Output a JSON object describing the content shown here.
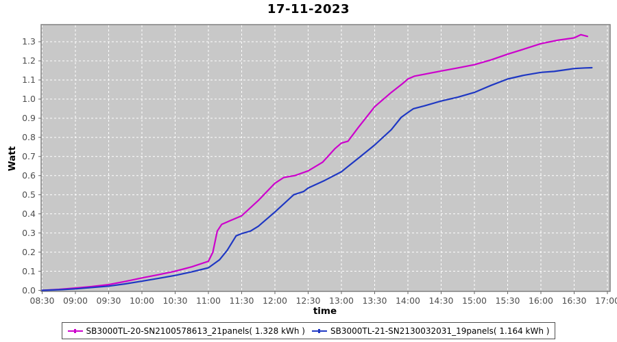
{
  "title": "17-11-2023",
  "axes": {
    "y_label": "Watt",
    "x_label": "time",
    "y_ticks": [
      "0.0",
      "0.1",
      "0.2",
      "0.3",
      "0.4",
      "0.5",
      "0.6",
      "0.7",
      "0.8",
      "0.9",
      "1.0",
      "1.1",
      "1.2",
      "1.3"
    ],
    "x_ticks": [
      "08:30",
      "09:00",
      "09:30",
      "10:00",
      "10:30",
      "11:00",
      "11:30",
      "12:00",
      "12:30",
      "13:00",
      "13:30",
      "14:00",
      "14:30",
      "15:00",
      "15:30",
      "16:00",
      "16:30",
      "17:00"
    ]
  },
  "legend": {
    "entries": [
      {
        "label": "SB3000TL-20-SN2100578613_21panels( 1.328 kWh )",
        "color": "#CC00CC"
      },
      {
        "label": "SB3000TL-21-SN2130032031_19panels( 1.164 kWh )",
        "color": "#1E37C3"
      }
    ]
  },
  "colors": {
    "plot_background": "#C8C8C8",
    "grid": "#FFFFFF",
    "plot_border": "#808080",
    "tick_text": "#4D4D4D",
    "tick_mark": "#666666",
    "series_magenta": "#CC00CC",
    "series_blue": "#1E37C3"
  },
  "chart_data": {
    "type": "line",
    "title": "17-11-2023",
    "xlabel": "time",
    "ylabel": "Watt",
    "x_range": [
      "08:30",
      "17:00"
    ],
    "ylim": [
      0.0,
      1.39
    ],
    "grid": "white dashed on gray, both axes",
    "legend_position": "bottom-center",
    "series": [
      {
        "name": "SB3000TL-20-SN2100578613_21panels( 1.328 kWh )",
        "color": "#CC00CC",
        "total_kwh": 1.328,
        "points": [
          [
            "08:30",
            0.0
          ],
          [
            "08:45",
            0.005
          ],
          [
            "09:00",
            0.012
          ],
          [
            "09:15",
            0.02
          ],
          [
            "09:30",
            0.03
          ],
          [
            "09:45",
            0.047
          ],
          [
            "10:00",
            0.065
          ],
          [
            "10:15",
            0.082
          ],
          [
            "10:30",
            0.1
          ],
          [
            "10:45",
            0.123
          ],
          [
            "11:00",
            0.152
          ],
          [
            "11:04",
            0.2
          ],
          [
            "11:08",
            0.31
          ],
          [
            "11:12",
            0.345
          ],
          [
            "11:20",
            0.365
          ],
          [
            "11:30",
            0.39
          ],
          [
            "11:45",
            0.47
          ],
          [
            "12:00",
            0.56
          ],
          [
            "12:08",
            0.59
          ],
          [
            "12:18",
            0.6
          ],
          [
            "12:30",
            0.625
          ],
          [
            "12:43",
            0.67
          ],
          [
            "12:54",
            0.74
          ],
          [
            "13:00",
            0.77
          ],
          [
            "13:06",
            0.78
          ],
          [
            "13:15",
            0.85
          ],
          [
            "13:30",
            0.96
          ],
          [
            "13:45",
            1.035
          ],
          [
            "13:55",
            1.08
          ],
          [
            "14:00",
            1.105
          ],
          [
            "14:06",
            1.12
          ],
          [
            "14:30",
            1.147
          ],
          [
            "14:45",
            1.163
          ],
          [
            "15:00",
            1.18
          ],
          [
            "15:15",
            1.205
          ],
          [
            "15:30",
            1.235
          ],
          [
            "15:45",
            1.262
          ],
          [
            "16:00",
            1.29
          ],
          [
            "16:15",
            1.308
          ],
          [
            "16:30",
            1.32
          ],
          [
            "16:36",
            1.337
          ],
          [
            "16:42",
            1.328
          ]
        ]
      },
      {
        "name": "SB3000TL-21-SN2130032031_19panels( 1.164 kWh )",
        "color": "#1E37C3",
        "total_kwh": 1.164,
        "points": [
          [
            "08:30",
            0.0
          ],
          [
            "08:48",
            0.004
          ],
          [
            "09:00",
            0.008
          ],
          [
            "09:15",
            0.015
          ],
          [
            "09:30",
            0.022
          ],
          [
            "09:45",
            0.034
          ],
          [
            "10:00",
            0.048
          ],
          [
            "10:15",
            0.063
          ],
          [
            "10:30",
            0.078
          ],
          [
            "10:45",
            0.097
          ],
          [
            "11:00",
            0.118
          ],
          [
            "11:10",
            0.16
          ],
          [
            "11:17",
            0.21
          ],
          [
            "11:25",
            0.285
          ],
          [
            "11:30",
            0.297
          ],
          [
            "11:38",
            0.31
          ],
          [
            "11:45",
            0.335
          ],
          [
            "12:00",
            0.41
          ],
          [
            "12:17",
            0.5
          ],
          [
            "12:26",
            0.517
          ],
          [
            "12:30",
            0.535
          ],
          [
            "12:45",
            0.575
          ],
          [
            "13:00",
            0.62
          ],
          [
            "13:15",
            0.69
          ],
          [
            "13:30",
            0.76
          ],
          [
            "13:45",
            0.84
          ],
          [
            "13:54",
            0.905
          ],
          [
            "14:00",
            0.93
          ],
          [
            "14:05",
            0.95
          ],
          [
            "14:15",
            0.965
          ],
          [
            "14:30",
            0.99
          ],
          [
            "14:45",
            1.01
          ],
          [
            "15:00",
            1.035
          ],
          [
            "15:15",
            1.072
          ],
          [
            "15:30",
            1.105
          ],
          [
            "15:45",
            1.125
          ],
          [
            "16:00",
            1.14
          ],
          [
            "16:12",
            1.145
          ],
          [
            "16:24",
            1.155
          ],
          [
            "16:30",
            1.16
          ],
          [
            "16:40",
            1.163
          ],
          [
            "16:46",
            1.164
          ]
        ]
      }
    ]
  }
}
